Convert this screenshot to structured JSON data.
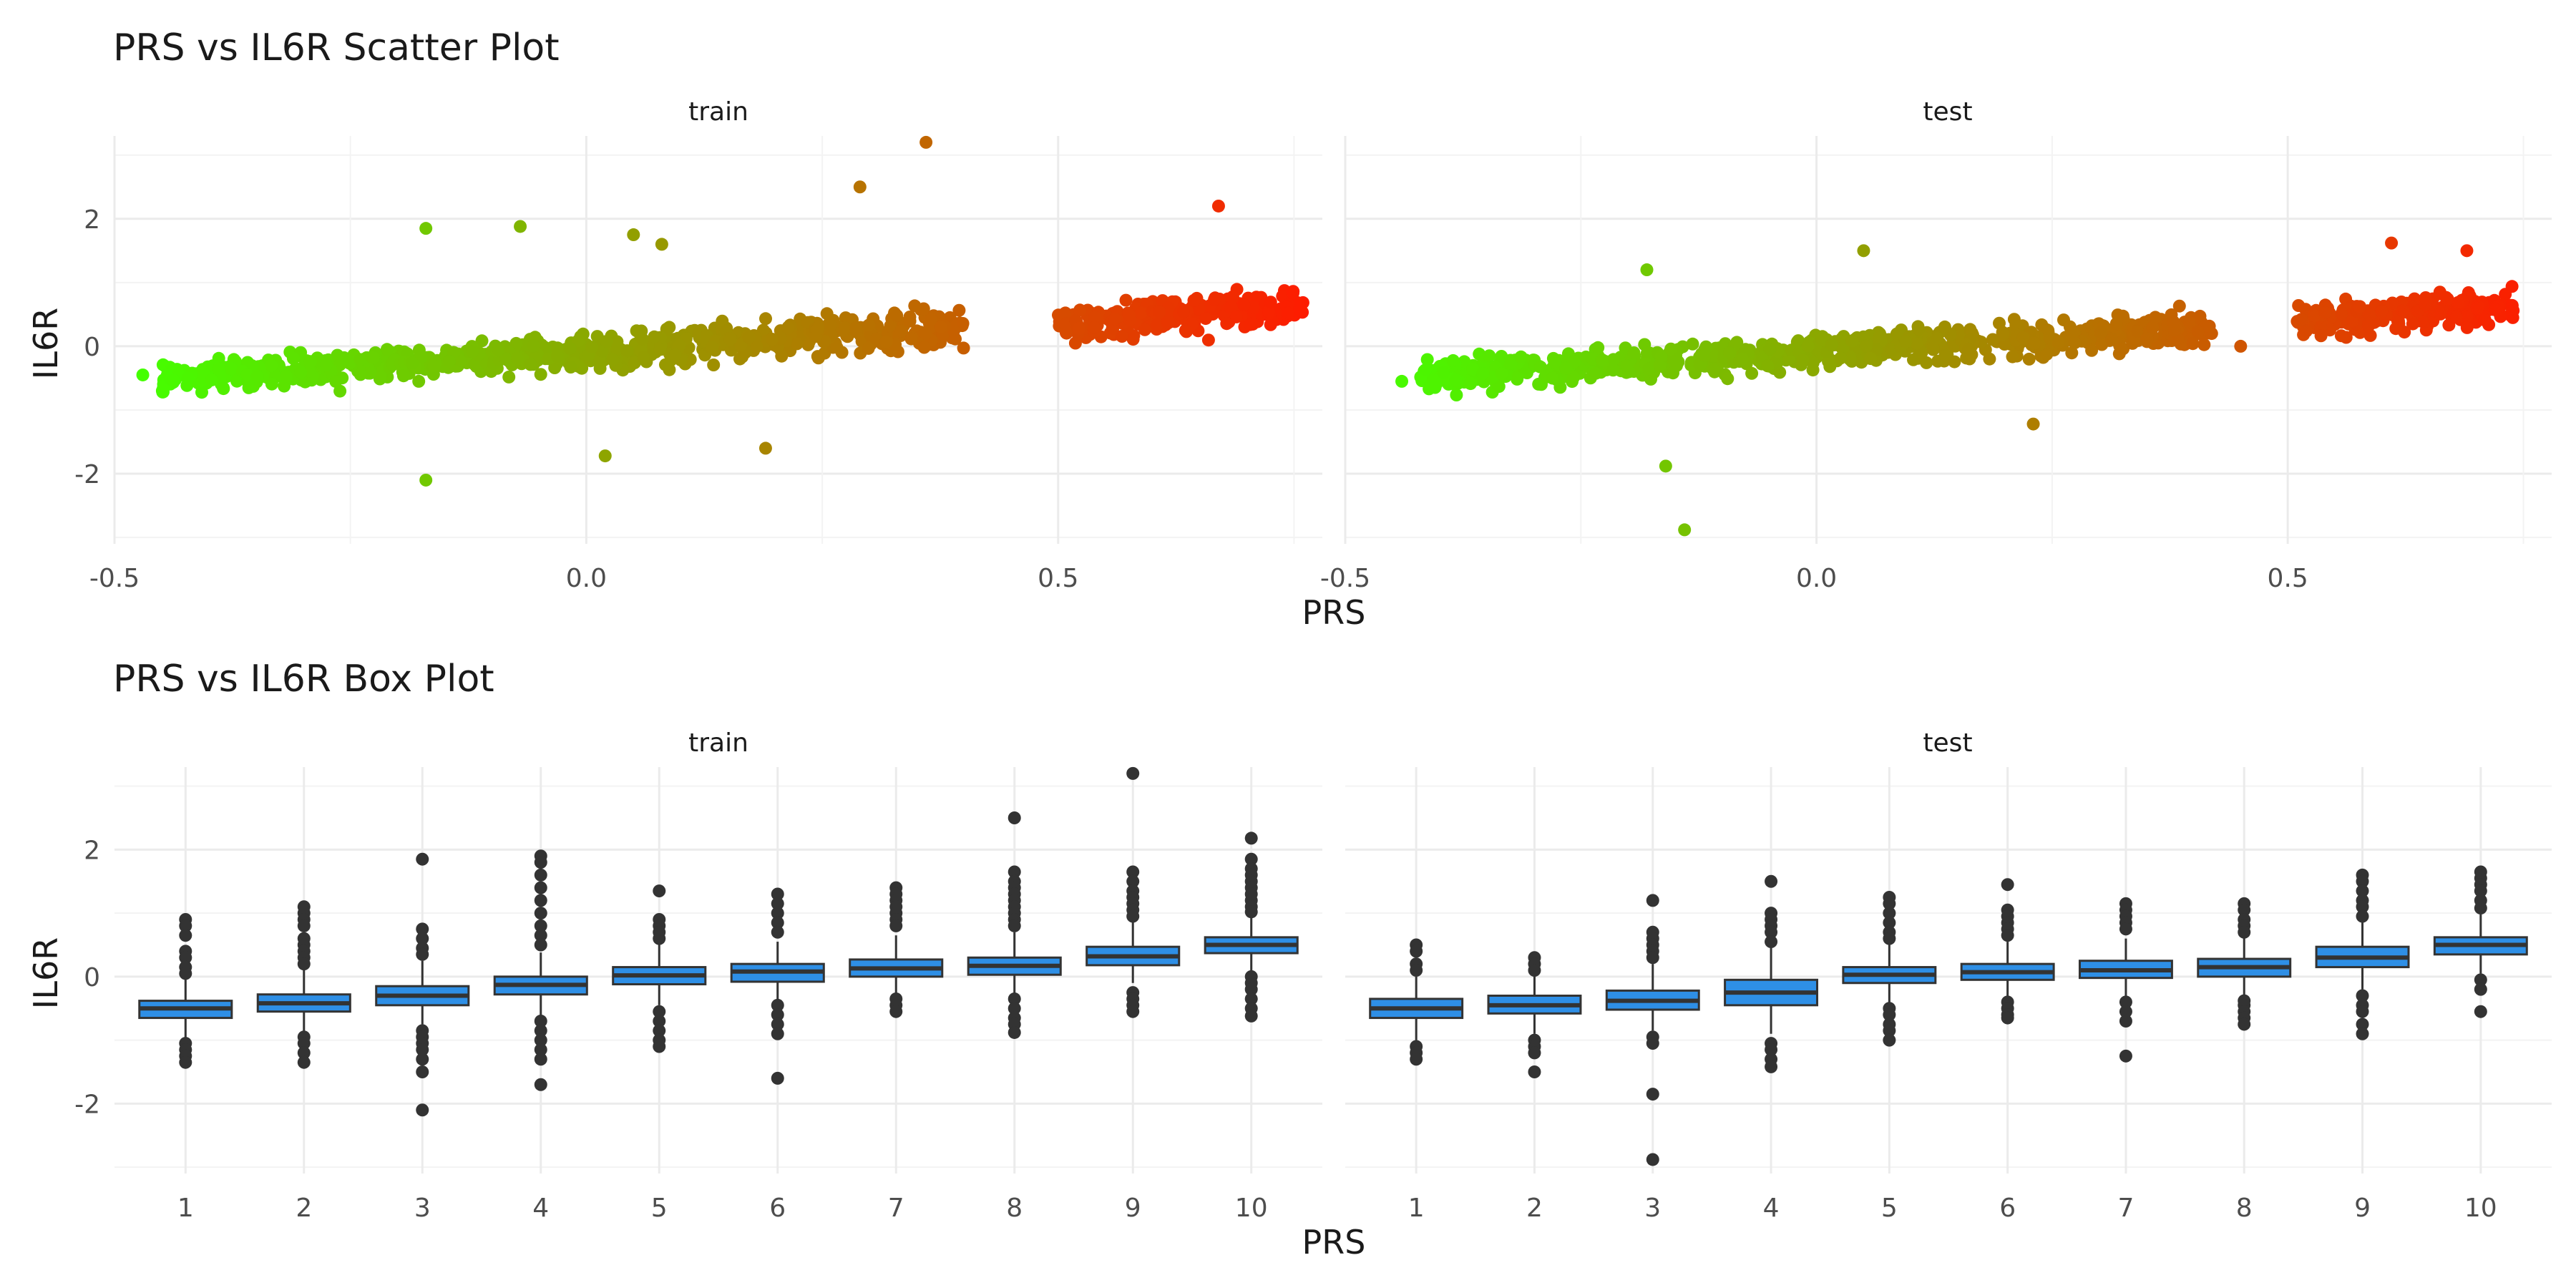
{
  "chart_data": [
    {
      "type": "scatter",
      "title": "PRS vs IL6R Scatter Plot",
      "xlabel": "PRS",
      "ylabel": "IL6R",
      "facets": [
        "train",
        "test"
      ],
      "xlim": [
        -0.5,
        0.78
      ],
      "ylim": [
        -3.1,
        3.3
      ],
      "x_ticks": [
        "-0.5",
        "0.0",
        "0.5"
      ],
      "y_ticks": [
        "2",
        "0",
        "-2"
      ],
      "color_gradient": {
        "low": "#44ff00",
        "high": "#ff1a00"
      },
      "grid": true,
      "legend": "none",
      "series": [
        {
          "facet": "train",
          "trend": {
            "slope": 0.95,
            "intercept": -0.08
          },
          "clusters": [
            {
              "x_range": [
                -0.45,
                -0.1
              ],
              "y_sd": 0.28
            },
            {
              "x_range": [
                -0.1,
                0.4
              ],
              "y_sd": 0.33
            },
            {
              "x_range": [
                0.5,
                0.76
              ],
              "y_sd": 0.32
            }
          ],
          "outliers": [
            {
              "x": 0.36,
              "y": 3.2
            },
            {
              "x": 0.29,
              "y": 2.5
            },
            {
              "x": 0.67,
              "y": 2.2
            },
            {
              "x": -0.17,
              "y": 1.85
            },
            {
              "x": -0.07,
              "y": 1.88
            },
            {
              "x": 0.05,
              "y": 1.75
            },
            {
              "x": 0.08,
              "y": 1.6
            },
            {
              "x": -0.17,
              "y": -2.1
            },
            {
              "x": 0.02,
              "y": -1.72
            },
            {
              "x": 0.19,
              "y": -1.6
            },
            {
              "x": -0.47,
              "y": -0.45
            }
          ]
        },
        {
          "facet": "test",
          "trend": {
            "slope": 0.95,
            "intercept": -0.08
          },
          "clusters": [
            {
              "x_range": [
                -0.42,
                -0.1
              ],
              "y_sd": 0.27
            },
            {
              "x_range": [
                -0.1,
                0.42
              ],
              "y_sd": 0.3
            },
            {
              "x_range": [
                0.51,
                0.74
              ],
              "y_sd": 0.3
            }
          ],
          "outliers": [
            {
              "x": -0.14,
              "y": -2.88
            },
            {
              "x": -0.16,
              "y": -1.88
            },
            {
              "x": 0.05,
              "y": 1.5
            },
            {
              "x": 0.23,
              "y": -1.22
            },
            {
              "x": -0.18,
              "y": 1.2
            },
            {
              "x": 0.61,
              "y": 1.62
            },
            {
              "x": 0.69,
              "y": 1.5
            },
            {
              "x": -0.44,
              "y": -0.55
            },
            {
              "x": 0.45,
              "y": 0.0
            }
          ]
        }
      ]
    },
    {
      "type": "box",
      "title": "PRS vs IL6R Box Plot",
      "xlabel": "PRS",
      "ylabel": "IL6R",
      "facets": [
        "train",
        "test"
      ],
      "categories": [
        "1",
        "2",
        "3",
        "4",
        "5",
        "6",
        "7",
        "8",
        "9",
        "10"
      ],
      "ylim": [
        -3.1,
        3.3
      ],
      "y_ticks": [
        "2",
        "0",
        "-2"
      ],
      "box_color": "#2e8fe6",
      "grid": true,
      "series": [
        {
          "facet": "train",
          "boxes": [
            {
              "q1": -0.65,
              "median": -0.5,
              "q3": -0.38,
              "wlo": -1.0,
              "whi": -0.02,
              "outliers": [
                0.9,
                0.8,
                0.65,
                0.4,
                0.3,
                0.15,
                0.05,
                -1.05,
                -1.15,
                -1.25,
                -1.35
              ]
            },
            {
              "q1": -0.55,
              "median": -0.42,
              "q3": -0.28,
              "wlo": -0.9,
              "whi": 0.1,
              "outliers": [
                1.1,
                1.0,
                0.9,
                0.8,
                0.6,
                0.5,
                0.4,
                0.3,
                0.2,
                -0.95,
                -1.05,
                -1.2,
                -1.35
              ]
            },
            {
              "q1": -0.45,
              "median": -0.3,
              "q3": -0.15,
              "wlo": -0.75,
              "whi": 0.25,
              "outliers": [
                1.85,
                0.75,
                0.6,
                0.45,
                0.35,
                -0.85,
                -0.95,
                -1.05,
                -1.15,
                -1.3,
                -1.5,
                -2.1
              ]
            },
            {
              "q1": -0.28,
              "median": -0.13,
              "q3": 0.0,
              "wlo": -0.65,
              "whi": 0.38,
              "outliers": [
                1.9,
                1.8,
                1.6,
                1.4,
                1.2,
                1.0,
                0.8,
                0.65,
                0.5,
                -0.7,
                -0.85,
                -1.0,
                -1.15,
                -1.3,
                -1.7
              ]
            },
            {
              "q1": -0.12,
              "median": 0.02,
              "q3": 0.15,
              "wlo": -0.45,
              "whi": 0.5,
              "outliers": [
                1.35,
                0.9,
                0.8,
                0.7,
                0.6,
                -0.55,
                -0.7,
                -0.85,
                -1.0,
                -1.1
              ]
            },
            {
              "q1": -0.08,
              "median": 0.08,
              "q3": 0.2,
              "wlo": -0.38,
              "whi": 0.55,
              "outliers": [
                1.3,
                1.15,
                1.0,
                0.85,
                0.7,
                -0.45,
                -0.6,
                -0.75,
                -0.9,
                -1.6
              ]
            },
            {
              "q1": 0.0,
              "median": 0.13,
              "q3": 0.27,
              "wlo": -0.3,
              "whi": 0.65,
              "outliers": [
                1.4,
                1.3,
                1.2,
                1.1,
                1.0,
                0.9,
                0.8,
                -0.35,
                -0.45,
                -0.55
              ]
            },
            {
              "q1": 0.03,
              "median": 0.17,
              "q3": 0.3,
              "wlo": -0.3,
              "whi": 0.7,
              "outliers": [
                2.5,
                1.65,
                1.5,
                1.4,
                1.3,
                1.2,
                1.1,
                1.0,
                0.9,
                0.8,
                -0.35,
                -0.5,
                -0.65,
                -0.75,
                -0.88
              ]
            },
            {
              "q1": 0.18,
              "median": 0.32,
              "q3": 0.47,
              "wlo": -0.1,
              "whi": 0.9,
              "outliers": [
                3.2,
                1.65,
                1.5,
                1.35,
                1.25,
                1.15,
                1.05,
                0.95,
                -0.25,
                -0.35,
                -0.45,
                -0.55
              ]
            },
            {
              "q1": 0.37,
              "median": 0.5,
              "q3": 0.62,
              "wlo": 0.05,
              "whi": 0.98,
              "outliers": [
                2.18,
                1.85,
                1.7,
                1.6,
                1.5,
                1.4,
                1.3,
                1.2,
                1.1,
                1.02,
                0.0,
                -0.1,
                -0.2,
                -0.35,
                -0.5,
                -0.62
              ]
            }
          ]
        },
        {
          "facet": "test",
          "boxes": [
            {
              "q1": -0.65,
              "median": -0.5,
              "q3": -0.35,
              "wlo": -1.0,
              "whi": 0.0,
              "outliers": [
                0.5,
                0.4,
                0.2,
                0.1,
                -1.1,
                -1.2,
                -1.3
              ]
            },
            {
              "q1": -0.58,
              "median": -0.45,
              "q3": -0.3,
              "wlo": -0.9,
              "whi": 0.05,
              "outliers": [
                0.3,
                0.2,
                0.1,
                -1.0,
                -1.1,
                -1.2,
                -1.5
              ]
            },
            {
              "q1": -0.52,
              "median": -0.38,
              "q3": -0.22,
              "wlo": -0.85,
              "whi": 0.2,
              "outliers": [
                1.2,
                0.7,
                0.6,
                0.5,
                0.4,
                0.3,
                -0.95,
                -1.05,
                -1.85,
                -2.88
              ]
            },
            {
              "q1": -0.45,
              "median": -0.25,
              "q3": -0.05,
              "wlo": -0.9,
              "whi": 0.45,
              "outliers": [
                1.5,
                1.0,
                0.9,
                0.8,
                0.7,
                0.55,
                -1.05,
                -1.15,
                -1.3,
                -1.42
              ]
            },
            {
              "q1": -0.1,
              "median": 0.03,
              "q3": 0.15,
              "wlo": -0.45,
              "whi": 0.5,
              "outliers": [
                1.25,
                1.15,
                1.0,
                0.85,
                0.7,
                0.6,
                -0.5,
                -0.6,
                -0.75,
                -0.85,
                -1.0
              ]
            },
            {
              "q1": -0.05,
              "median": 0.07,
              "q3": 0.2,
              "wlo": -0.35,
              "whi": 0.55,
              "outliers": [
                1.45,
                1.05,
                0.95,
                0.85,
                0.75,
                0.65,
                -0.4,
                -0.5,
                -0.6,
                -0.65
              ]
            },
            {
              "q1": -0.02,
              "median": 0.1,
              "q3": 0.25,
              "wlo": -0.35,
              "whi": 0.6,
              "outliers": [
                1.15,
                1.05,
                0.95,
                0.85,
                0.75,
                -0.4,
                -0.55,
                -0.7,
                -1.25
              ]
            },
            {
              "q1": 0.0,
              "median": 0.15,
              "q3": 0.28,
              "wlo": -0.32,
              "whi": 0.65,
              "outliers": [
                1.15,
                1.05,
                0.9,
                0.8,
                0.7,
                -0.38,
                -0.45,
                -0.55,
                -0.65,
                -0.75
              ]
            },
            {
              "q1": 0.15,
              "median": 0.3,
              "q3": 0.47,
              "wlo": -0.2,
              "whi": 0.85,
              "outliers": [
                1.6,
                1.5,
                1.35,
                1.2,
                1.1,
                0.95,
                -0.3,
                -0.45,
                -0.55,
                -0.75,
                -0.9
              ]
            },
            {
              "q1": 0.35,
              "median": 0.5,
              "q3": 0.62,
              "wlo": 0.05,
              "whi": 0.98,
              "outliers": [
                1.65,
                1.55,
                1.45,
                1.35,
                1.2,
                1.08,
                -0.05,
                -0.2,
                -0.55
              ]
            }
          ]
        }
      ]
    }
  ]
}
